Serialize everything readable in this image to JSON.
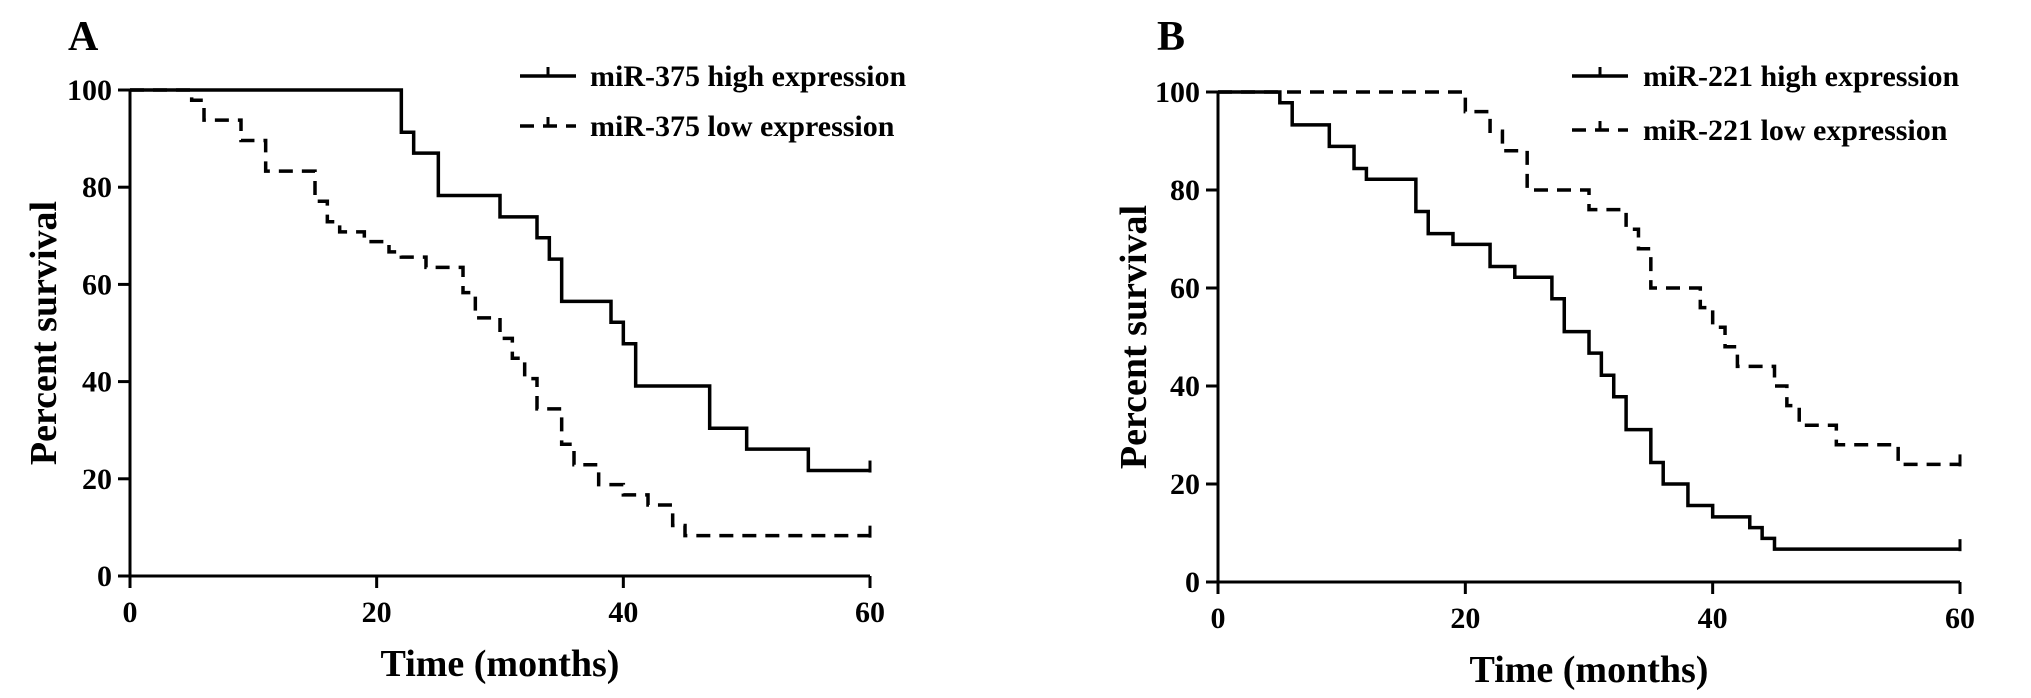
{
  "chart_data": [
    {
      "type": "line",
      "panel_label": "A",
      "title": "",
      "xlabel": "Time (months)",
      "ylabel": "Percent survival",
      "xlim": [
        0,
        60
      ],
      "ylim": [
        0,
        100
      ],
      "xticks": [
        "0",
        "20",
        "40",
        "60"
      ],
      "yticks": [
        "0",
        "20",
        "40",
        "60",
        "80",
        "100"
      ],
      "legend_position": "top-right",
      "series": [
        {
          "name": "miR-375 high expression",
          "style": "solid",
          "x": [
            0,
            22,
            23,
            25,
            30,
            33,
            34,
            35,
            39,
            40,
            41,
            47,
            50,
            55,
            60
          ],
          "y": [
            100,
            91.3,
            87,
            78.3,
            73.9,
            69.6,
            65.2,
            56.5,
            52.2,
            47.8,
            39.1,
            30.4,
            26.1,
            21.7,
            21.7
          ]
        },
        {
          "name": "miR-375 low expression",
          "style": "dashed",
          "x": [
            0,
            5,
            6,
            9,
            11,
            15,
            16,
            17,
            19,
            21,
            22,
            24,
            27,
            28,
            30,
            31,
            32,
            33,
            35,
            36,
            38,
            40,
            42,
            44,
            45,
            60
          ],
          "y": [
            100,
            97.9,
            93.8,
            89.6,
            83.3,
            77.1,
            72.9,
            70.8,
            68.8,
            66.7,
            65.6,
            63.5,
            58.3,
            53.1,
            48.9,
            44.8,
            40.6,
            34.4,
            27.1,
            22.9,
            18.8,
            16.7,
            14.6,
            10.4,
            8.3,
            8.3
          ]
        }
      ]
    },
    {
      "type": "line",
      "panel_label": "B",
      "title": "",
      "xlabel": "Time (months)",
      "ylabel": "Percent survival",
      "xlim": [
        0,
        60
      ],
      "ylim": [
        0,
        100
      ],
      "xticks": [
        "0",
        "20",
        "40",
        "60"
      ],
      "yticks": [
        "0",
        "20",
        "40",
        "60",
        "80",
        "100"
      ],
      "legend_position": "top-right",
      "series": [
        {
          "name": "miR-221 high expression",
          "style": "solid",
          "x": [
            0,
            5,
            6,
            9,
            11,
            12,
            16,
            17,
            19,
            22,
            24,
            27,
            28,
            30,
            31,
            32,
            33,
            35,
            36,
            38,
            40,
            43,
            44,
            45,
            60
          ],
          "y": [
            100,
            97.8,
            93.3,
            88.9,
            84.4,
            82.2,
            75.6,
            71.1,
            68.9,
            64.4,
            62.2,
            57.8,
            51.1,
            46.7,
            42.2,
            37.8,
            31.1,
            24.4,
            20,
            15.6,
            13.3,
            11.1,
            8.9,
            6.7,
            6.7
          ]
        },
        {
          "name": "miR-221 low expression",
          "style": "dashed",
          "x": [
            0,
            20,
            22,
            23,
            25,
            30,
            33,
            34,
            35,
            39,
            40,
            41,
            42,
            45,
            46,
            47,
            50,
            55,
            60
          ],
          "y": [
            100,
            96,
            92,
            88,
            80,
            76,
            72,
            68,
            60,
            56,
            52,
            48,
            44,
            40,
            36,
            32,
            28,
            24,
            24
          ]
        }
      ]
    }
  ]
}
